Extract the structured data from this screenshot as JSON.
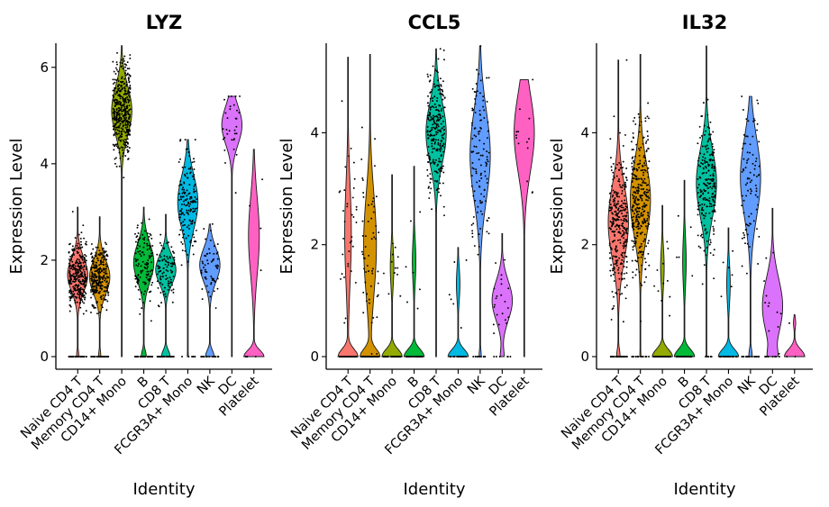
{
  "chart_data": [
    {
      "type": "violin",
      "title": "LYZ",
      "xlabel": "Identity",
      "ylabel": "Expression Level",
      "ylim": [
        0,
        6.5
      ],
      "yticks": [
        0,
        2,
        4,
        6
      ],
      "categories": [
        "Naive CD4 T",
        "Memory CD4 T",
        "CD14+ Mono",
        "B",
        "CD8 T",
        "FCGR3A+ Mono",
        "NK",
        "DC",
        "Platelet"
      ],
      "colors": [
        "#F8766D",
        "#D39200",
        "#93AA00",
        "#00BA38",
        "#00C19F",
        "#00B9E3",
        "#619CFF",
        "#DB72FB",
        "#FF61C3"
      ],
      "groups": [
        {
          "max": 3.1,
          "zero_frac": 0.1,
          "center": 1.7,
          "spread": 0.35,
          "n": 360
        },
        {
          "max": 2.9,
          "zero_frac": 0.1,
          "center": 1.65,
          "spread": 0.35,
          "n": 300
        },
        {
          "max": 6.45,
          "zero_frac": 0.0,
          "center": 5.1,
          "spread": 0.5,
          "n": 420
        },
        {
          "max": 3.1,
          "zero_frac": 0.2,
          "center": 1.95,
          "spread": 0.4,
          "n": 170
        },
        {
          "max": 2.95,
          "zero_frac": 0.3,
          "center": 1.8,
          "spread": 0.3,
          "n": 150
        },
        {
          "max": 4.5,
          "zero_frac": 0.05,
          "center": 3.2,
          "spread": 0.55,
          "n": 170
        },
        {
          "max": 2.75,
          "zero_frac": 0.3,
          "center": 1.9,
          "spread": 0.35,
          "n": 80
        },
        {
          "max": 5.4,
          "zero_frac": 0.0,
          "center": 4.8,
          "spread": 0.4,
          "n": 32
        },
        {
          "max": 4.3,
          "zero_frac": 0.65,
          "center": 2.5,
          "spread": 0.8,
          "n": 8
        }
      ]
    },
    {
      "type": "violin",
      "title": "CCL5",
      "xlabel": "Identity",
      "ylabel": "Expression Level",
      "ylim": [
        0,
        5.6
      ],
      "yticks": [
        0,
        2,
        4
      ],
      "categories": [
        "Naive CD4 T",
        "Memory CD4 T",
        "CD14+ Mono",
        "B",
        "CD8 T",
        "FCGR3A+ Mono",
        "NK",
        "DC",
        "Platelet"
      ],
      "colors": [
        "#F8766D",
        "#D39200",
        "#93AA00",
        "#00BA38",
        "#00C19F",
        "#00B9E3",
        "#619CFF",
        "#DB72FB",
        "#FF61C3"
      ],
      "groups": [
        {
          "max": 5.35,
          "zero_frac": 0.75,
          "center": 2.2,
          "spread": 0.9,
          "n": 120
        },
        {
          "max": 5.4,
          "zero_frac": 0.6,
          "center": 2.0,
          "spread": 0.9,
          "n": 140
        },
        {
          "max": 3.25,
          "zero_frac": 0.85,
          "center": 1.6,
          "spread": 0.35,
          "n": 70
        },
        {
          "max": 3.4,
          "zero_frac": 0.85,
          "center": 1.7,
          "spread": 0.4,
          "n": 40
        },
        {
          "max": 5.5,
          "zero_frac": 0.0,
          "center": 4.0,
          "spread": 0.55,
          "n": 260
        },
        {
          "max": 1.95,
          "zero_frac": 0.85,
          "center": 1.3,
          "spread": 0.3,
          "n": 20
        },
        {
          "max": 5.55,
          "zero_frac": 0.1,
          "center": 3.6,
          "spread": 0.8,
          "n": 130
        },
        {
          "max": 2.2,
          "zero_frac": 0.15,
          "center": 1.0,
          "spread": 0.35,
          "n": 28
        },
        {
          "max": 4.95,
          "zero_frac": 0.0,
          "center": 4.0,
          "spread": 0.7,
          "n": 14
        }
      ]
    },
    {
      "type": "violin",
      "title": "IL32",
      "xlabel": "Identity",
      "ylabel": "Expression Level",
      "ylim": [
        0,
        5.6
      ],
      "yticks": [
        0,
        2,
        4
      ],
      "categories": [
        "Naive CD4 T",
        "Memory CD4 T",
        "CD14+ Mono",
        "B",
        "CD8 T",
        "FCGR3A+ Mono",
        "NK",
        "DC",
        "Platelet"
      ],
      "colors": [
        "#F8766D",
        "#D39200",
        "#93AA00",
        "#00BA38",
        "#00C19F",
        "#00B9E3",
        "#619CFF",
        "#DB72FB",
        "#FF61C3"
      ],
      "groups": [
        {
          "max": 5.3,
          "zero_frac": 0.15,
          "center": 2.4,
          "spread": 0.65,
          "n": 340
        },
        {
          "max": 5.4,
          "zero_frac": 0.05,
          "center": 2.8,
          "spread": 0.65,
          "n": 330
        },
        {
          "max": 2.7,
          "zero_frac": 0.85,
          "center": 1.6,
          "spread": 0.35,
          "n": 60
        },
        {
          "max": 3.15,
          "zero_frac": 0.85,
          "center": 1.7,
          "spread": 0.45,
          "n": 40
        },
        {
          "max": 5.55,
          "zero_frac": 0.02,
          "center": 3.1,
          "spread": 0.6,
          "n": 230
        },
        {
          "max": 2.3,
          "zero_frac": 0.85,
          "center": 1.3,
          "spread": 0.35,
          "n": 30
        },
        {
          "max": 4.65,
          "zero_frac": 0.15,
          "center": 3.2,
          "spread": 0.7,
          "n": 110
        },
        {
          "max": 2.65,
          "zero_frac": 0.25,
          "center": 0.9,
          "spread": 0.5,
          "n": 20
        },
        {
          "max": 0.75,
          "zero_frac": 0.9,
          "center": 0.6,
          "spread": 0.1,
          "n": 3
        }
      ]
    }
  ]
}
